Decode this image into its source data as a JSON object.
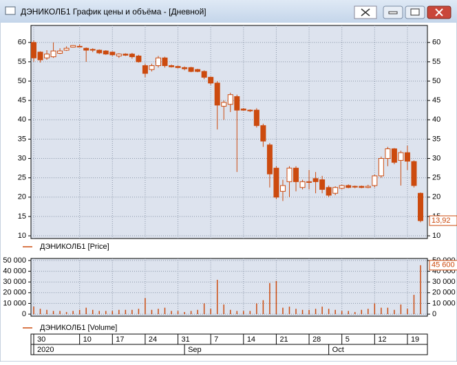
{
  "window": {
    "title": "ДЭНИКОЛБ1 График цены и объёма - [Дневной]"
  },
  "chart_data": [
    {
      "type": "candlestick",
      "series": [
        {
          "name": "ДЭНИКОЛБ1 [Price]",
          "color": "#cc4a0e",
          "open": [
            60,
            57.5,
            56,
            56.3,
            57.2,
            58,
            58.8,
            59,
            58.5,
            58.2,
            58,
            57.8,
            57.5,
            56.5,
            57,
            57,
            56.5,
            54,
            53,
            54,
            56,
            54,
            53.8,
            53.5,
            53.5,
            53,
            52.5,
            51,
            49.5,
            43.5,
            44,
            46,
            42.8,
            42.5,
            42.5,
            38.5,
            33.5,
            27.5,
            21.5,
            24,
            27.5,
            22.5,
            24,
            24.8,
            24.5,
            22.5,
            21,
            22.3,
            23,
            22.8,
            22.8,
            22.5,
            23,
            25.5,
            30,
            32.5,
            29.5,
            31.5,
            29.2,
            21
          ],
          "high": [
            60.5,
            57.7,
            58,
            60,
            58.5,
            59,
            59.3,
            59.5,
            58.7,
            58.5,
            58.2,
            58,
            57.7,
            57.2,
            57.2,
            57.3,
            56.8,
            54.5,
            54.5,
            56.5,
            56.3,
            54.3,
            54,
            53.8,
            53.7,
            53.2,
            52.8,
            51.2,
            50,
            45,
            47,
            46.5,
            43,
            42.7,
            43,
            39,
            34,
            28,
            24.5,
            28,
            28,
            24.5,
            27,
            26.5,
            25.5,
            23,
            22.8,
            23.2,
            23.3,
            23,
            23,
            23.2,
            25.8,
            30.5,
            33,
            32.7,
            32,
            33.3,
            29.5,
            21.2
          ],
          "low": [
            55,
            54.8,
            55.5,
            56,
            57,
            57.8,
            58.7,
            58.8,
            55,
            57.5,
            57,
            56.8,
            56.5,
            56,
            56.5,
            55.8,
            54.8,
            51,
            52.5,
            53.5,
            53.5,
            53.5,
            53.3,
            52.8,
            52.3,
            52.3,
            50.5,
            49,
            37.5,
            40,
            42,
            26.5,
            42.3,
            42,
            38,
            33,
            22.5,
            19.5,
            19,
            20,
            21.5,
            22,
            22,
            21,
            21,
            20,
            20.5,
            22,
            22.3,
            22.3,
            22.3,
            22.3,
            22.5,
            25,
            28,
            28.5,
            23,
            27,
            22.5,
            13.5
          ],
          "close": [
            56,
            55.5,
            57,
            57.8,
            57.8,
            58.5,
            59.2,
            59,
            58,
            58,
            57.3,
            57,
            56.8,
            57,
            56.7,
            56.3,
            55,
            52,
            54,
            56,
            54,
            53.7,
            53.5,
            53.2,
            52.5,
            52.5,
            51,
            49.5,
            43.8,
            44.5,
            46.5,
            42.5,
            42.5,
            42.3,
            38.5,
            34.5,
            26,
            20,
            23,
            27.5,
            24,
            24,
            23.8,
            24,
            22,
            20.5,
            22.5,
            23,
            22.5,
            22.6,
            22.5,
            22.8,
            25.5,
            30,
            32.5,
            29,
            31.5,
            29.3,
            23,
            13.92
          ],
          "last_value_label": "13,92"
        }
      ],
      "ylim": [
        9.3,
        64.4
      ],
      "yticks": [
        10,
        15,
        20,
        25,
        30,
        35,
        40,
        45,
        50,
        55,
        60
      ],
      "grid": true
    },
    {
      "type": "bar",
      "series": [
        {
          "name": "ДЭНИКОЛБ1 [Volume]",
          "color": "#cc4a0e",
          "values": [
            7000,
            5000,
            4000,
            3000,
            3000,
            2000,
            3000,
            4000,
            6000,
            4000,
            3000,
            3000,
            3000,
            4000,
            4000,
            4000,
            5000,
            15000,
            4000,
            5000,
            6000,
            3000,
            3000,
            2000,
            3000,
            4000,
            10000,
            5000,
            32000,
            9000,
            4000,
            3000,
            3000,
            3000,
            10000,
            13000,
            29000,
            31000,
            6000,
            7000,
            5000,
            4000,
            4000,
            5000,
            7000,
            5000,
            4000,
            3000,
            3000,
            2000,
            4000,
            5000,
            10000,
            6000,
            6000,
            4000,
            9000,
            5000,
            18000,
            45600
          ],
          "last_value_label": "45 600"
        }
      ],
      "ylim": [
        -1900,
        51900
      ],
      "yticks": [
        {
          "value": 0,
          "label": "0"
        },
        {
          "value": 10000,
          "label": "10 000"
        },
        {
          "value": 20000,
          "label": "20 000"
        },
        {
          "value": 30000,
          "label": "30 000"
        },
        {
          "value": 40000,
          "label": "40 000"
        },
        {
          "value": 50000,
          "label": "50 000"
        }
      ],
      "grid": true,
      "categories": [
        "30",
        null,
        null,
        null,
        null,
        null,
        null,
        "10",
        null,
        null,
        null,
        null,
        "17",
        null,
        null,
        null,
        null,
        "24",
        null,
        null,
        null,
        null,
        "31",
        null,
        null,
        null,
        null,
        "7",
        null,
        null,
        null,
        null,
        "14",
        null,
        null,
        null,
        null,
        "21",
        null,
        null,
        null,
        null,
        "28",
        null,
        null,
        null,
        null,
        "5",
        null,
        null,
        null,
        null,
        "12",
        null,
        null,
        null,
        null,
        "19",
        null,
        null
      ],
      "month_categories": [
        "2020",
        null,
        null,
        null,
        null,
        null,
        null,
        null,
        null,
        null,
        null,
        null,
        null,
        null,
        null,
        null,
        null,
        null,
        null,
        null,
        null,
        null,
        null,
        "Sep",
        null,
        null,
        null,
        null,
        null,
        null,
        null,
        null,
        null,
        null,
        null,
        null,
        null,
        null,
        null,
        null,
        null,
        null,
        null,
        null,
        null,
        "Oct",
        null,
        null,
        null,
        null,
        null,
        null,
        null,
        null,
        null,
        null,
        null,
        null,
        null,
        null
      ]
    }
  ]
}
